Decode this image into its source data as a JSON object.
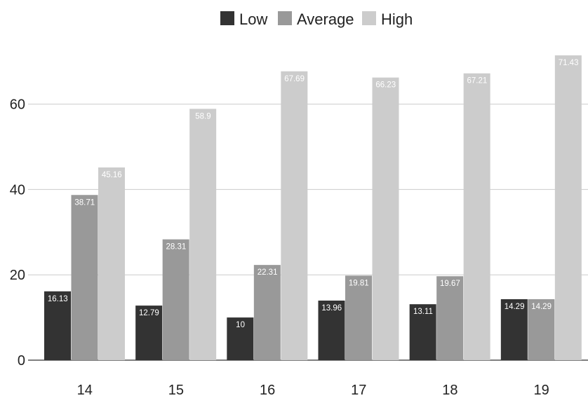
{
  "chart_data": {
    "type": "bar",
    "categories": [
      "14",
      "15",
      "16",
      "17",
      "18",
      "19"
    ],
    "series": [
      {
        "name": "Low",
        "color": "#333333",
        "values": [
          16.13,
          12.79,
          10,
          13.96,
          13.11,
          14.29
        ]
      },
      {
        "name": "Average",
        "color": "#999999",
        "values": [
          38.71,
          28.31,
          22.31,
          19.81,
          19.67,
          14.29
        ]
      },
      {
        "name": "High",
        "color": "#cccccc",
        "values": [
          45.16,
          58.9,
          67.69,
          66.23,
          67.21,
          71.43
        ]
      }
    ],
    "ylim": [
      0,
      75
    ],
    "yticks": [
      "0",
      "20",
      "40",
      "60"
    ],
    "data_labels": true,
    "legend": "top-center",
    "grid": true
  }
}
